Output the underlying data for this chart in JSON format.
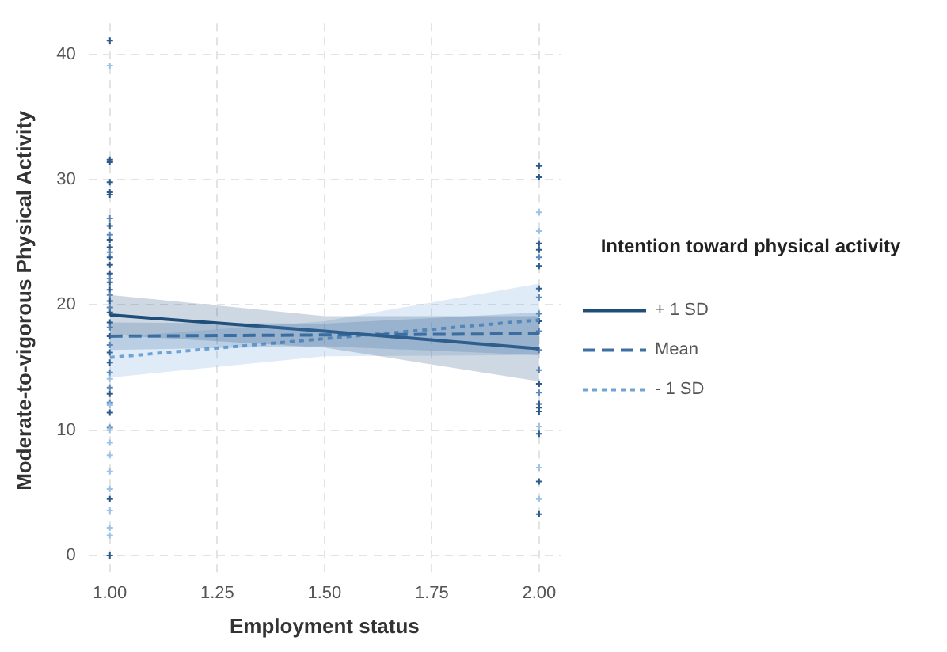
{
  "chart_data": {
    "type": "line",
    "xlabel": "Employment status",
    "ylabel": "Moderate-to-vigorous Physical Activity",
    "legend_title": "Intention toward physical activity",
    "legend": "right",
    "grid": true,
    "xlim": [
      0.95,
      2.05
    ],
    "xticks": [
      {
        "value": 1,
        "label": "1.00"
      },
      {
        "value": 1.25,
        "label": "1.25"
      },
      {
        "value": 1.5,
        "label": "1.50"
      },
      {
        "value": 1.75,
        "label": "1.75"
      },
      {
        "value": 2,
        "label": "2.00"
      }
    ],
    "ylim": [
      -1.8,
      42.5
    ],
    "yticks": [
      0,
      10,
      20,
      30,
      40
    ],
    "series": [
      {
        "type": "scatter",
        "marker": "cross",
        "color": "#2b5a8a",
        "x": [
          1,
          1,
          1,
          1,
          1,
          1,
          1,
          1,
          1,
          1,
          1,
          1,
          1,
          1,
          1,
          1,
          1,
          1,
          1,
          1,
          1,
          1,
          1,
          1,
          2,
          2,
          2,
          2,
          2,
          2,
          2,
          2,
          2,
          2,
          2,
          2,
          2,
          2
        ],
        "values": [
          41.1,
          31.6,
          31.4,
          29.8,
          29,
          28.8,
          26.3,
          25.2,
          24.6,
          23.8,
          23.2,
          22.5,
          21.2,
          20.3,
          19.4,
          18.6,
          17.5,
          16.2,
          15.4,
          12.9,
          11.4,
          4.5,
          0,
          21.8,
          31.1,
          30.2,
          24.9,
          24.4,
          23.1,
          21.3,
          18.7,
          13.7,
          12.1,
          11.8,
          11.5,
          9.7,
          5.9,
          3.3
        ]
      },
      {
        "type": "scatter",
        "marker": "cross",
        "color": "#5b88b8",
        "x": [
          1,
          1,
          1,
          1,
          1,
          1,
          1,
          1,
          1,
          1,
          1,
          1,
          2,
          2,
          2,
          2,
          2,
          2,
          2
        ],
        "values": [
          26.9,
          25.6,
          24.2,
          22.1,
          20.8,
          19.8,
          18.2,
          16.8,
          14.6,
          13.4,
          12.2,
          10.2,
          23.8,
          20.6,
          19.3,
          17.9,
          16.4,
          14.8,
          13
        ]
      },
      {
        "type": "scatter",
        "marker": "cross",
        "color": "#9cc3e6",
        "x": [
          1,
          1,
          1,
          1,
          1,
          1,
          1,
          1,
          1,
          1,
          1,
          2,
          2,
          2,
          2,
          2
        ],
        "values": [
          39.1,
          14.1,
          12,
          10,
          9,
          8,
          6.7,
          5.3,
          3.6,
          2.2,
          1.6,
          27.4,
          25.9,
          10.3,
          7,
          4.5
        ]
      },
      {
        "name": "+ 1 SD",
        "marker": "none",
        "color": "#1f4e79",
        "line_style": "solid",
        "x": [
          1,
          1.5,
          2
        ],
        "values": [
          19.2,
          17.9,
          16.5
        ],
        "lower": [
          17.6,
          16.6,
          13.9
        ],
        "upper": [
          20.8,
          19.1,
          19.1
        ]
      },
      {
        "name": "Mean",
        "marker": "none",
        "color": "#3d6fa3",
        "line_style": "dashed",
        "x": [
          1,
          1.5,
          2
        ],
        "values": [
          17.5,
          17.6,
          17.7
        ],
        "lower": [
          16.4,
          16.7,
          16
        ],
        "upper": [
          18.6,
          18.5,
          19.4
        ]
      },
      {
        "name": "- 1 SD",
        "marker": "none",
        "color": "#6fa3d6",
        "line_style": "dotted",
        "x": [
          1,
          1.5,
          2
        ],
        "values": [
          15.8,
          17.3,
          18.8
        ],
        "lower": [
          14.2,
          15.9,
          16
        ],
        "upper": [
          17.4,
          18.7,
          21.7
        ]
      }
    ]
  }
}
